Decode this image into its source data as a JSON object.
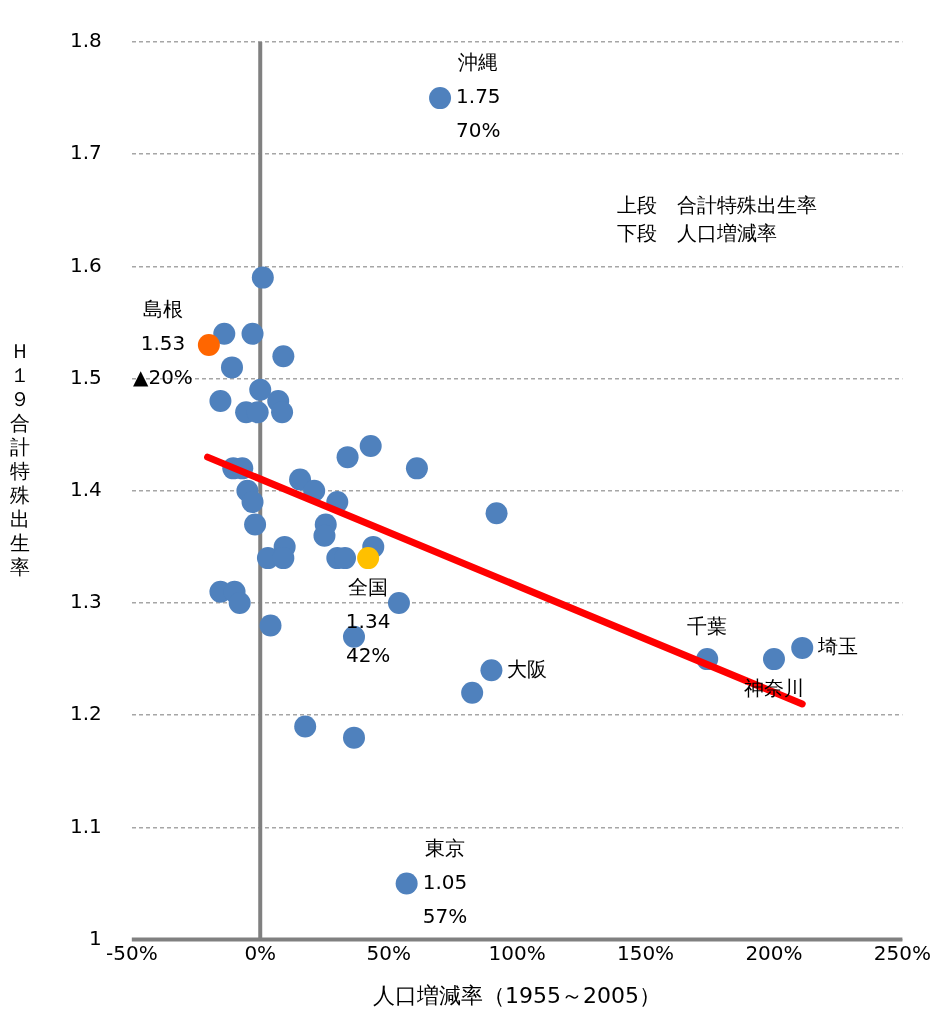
{
  "chart_data": {
    "type": "scatter",
    "xlabel": "人口増減率（1955～2005）",
    "ylabel": "Ｈ１９合計特殊出生率",
    "xlim": [
      -50,
      250
    ],
    "xticks": [
      {
        "value": -50,
        "label": "-50%"
      },
      {
        "value": 0,
        "label": "0%"
      },
      {
        "value": 50,
        "label": "50%"
      },
      {
        "value": 100,
        "label": "100%"
      },
      {
        "value": 150,
        "label": "150%"
      },
      {
        "value": 200,
        "label": "200%"
      },
      {
        "value": 250,
        "label": "250%"
      }
    ],
    "ylim": [
      1,
      1.8
    ],
    "yticks": [
      1,
      1.1,
      1.2,
      1.3,
      1.4,
      1.5,
      1.6,
      1.7,
      1.8
    ],
    "grid": "y",
    "legend": false,
    "marker": "circle",
    "ref_lines": [
      {
        "axis": "x",
        "value": 0,
        "color": "#808080"
      }
    ],
    "series": [
      {
        "type": "line",
        "color": "#ff0000",
        "marker": "none",
        "x": [
          -20.5,
          211
        ],
        "values": [
          1.43,
          1.21
        ]
      },
      {
        "type": "scatter",
        "color": "#ff6600",
        "x": [
          -20
        ],
        "values": [
          1.53
        ]
      },
      {
        "type": "scatter",
        "color": "#ffc000",
        "x": [
          42
        ],
        "values": [
          1.34
        ]
      },
      {
        "type": "scatter",
        "color": "#4f81bd",
        "x": [
          1,
          -14,
          -3,
          9,
          -11,
          0,
          -15.5,
          7,
          -5.5,
          -1,
          8.5,
          43,
          34,
          61,
          -10.5,
          -7,
          15.5,
          21,
          -5,
          -3,
          30,
          -2,
          25.5,
          25,
          9.5,
          44,
          3,
          9,
          30,
          33,
          -15.5,
          -10,
          -8,
          54,
          4,
          36.5,
          17.5,
          36.5,
          70,
          92,
          90,
          82.5,
          57,
          174,
          200,
          211
        ],
        "values": [
          1.59,
          1.54,
          1.54,
          1.52,
          1.51,
          1.49,
          1.48,
          1.48,
          1.47,
          1.47,
          1.47,
          1.44,
          1.43,
          1.42,
          1.42,
          1.42,
          1.41,
          1.4,
          1.4,
          1.39,
          1.39,
          1.37,
          1.37,
          1.36,
          1.35,
          1.35,
          1.34,
          1.34,
          1.34,
          1.34,
          1.31,
          1.31,
          1.3,
          1.3,
          1.28,
          1.27,
          1.19,
          1.18,
          1.75,
          1.38,
          1.24,
          1.22,
          1.05,
          1.25,
          1.25,
          1.26
        ]
      }
    ],
    "annotations": [
      {
        "text": "沖縄\n1.75\n70%",
        "x": 70,
        "y": 1.75
      },
      {
        "text": "島根\n1.53\n▲20%",
        "x": -20,
        "y": 1.53
      },
      {
        "text": "全国\n1.34\n42%",
        "x": 42,
        "y": 1.34
      },
      {
        "text": "東京\n1.05\n57%",
        "x": 57,
        "y": 1.05
      },
      {
        "text": "大阪",
        "x": 90,
        "y": 1.24
      },
      {
        "text": "千葉",
        "x": 174,
        "y": 1.25
      },
      {
        "text": "神奈川",
        "x": 200,
        "y": 1.25
      },
      {
        "text": "埼玉",
        "x": 211,
        "y": 1.26
      },
      "上段　合計特殊出生率",
      "下段　人口増減率"
    ]
  }
}
